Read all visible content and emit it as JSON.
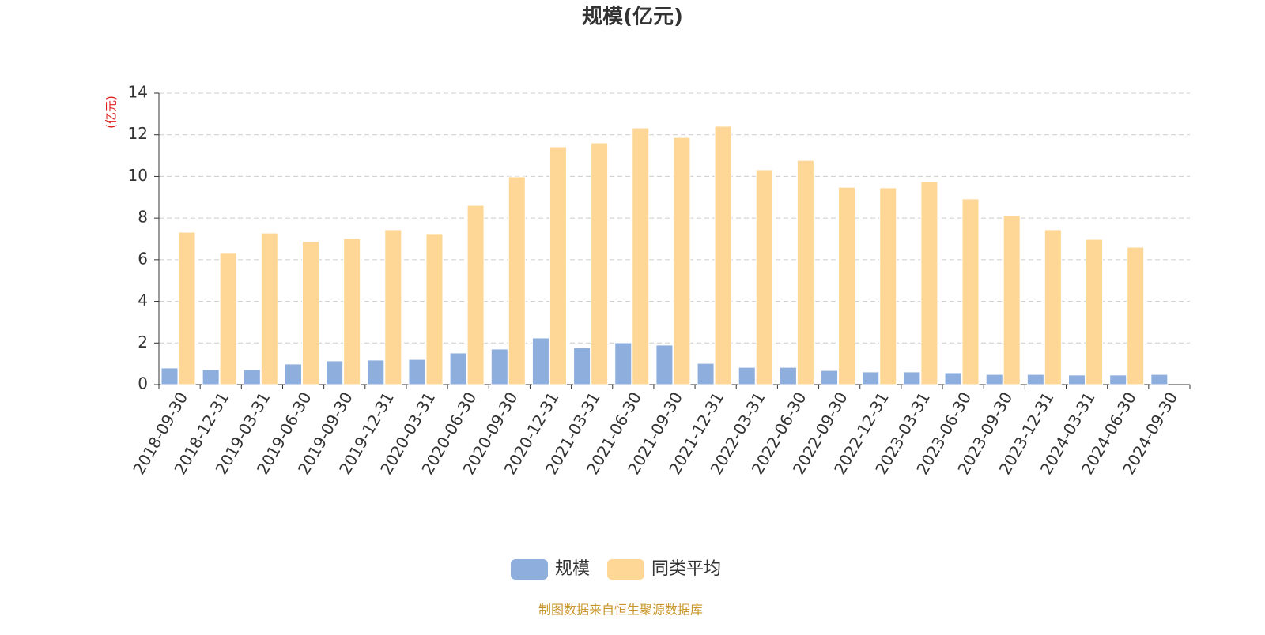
{
  "chart_data": {
    "type": "bar",
    "title": "规模(亿元)",
    "y_axis_label": "(亿元)",
    "categories": [
      "2018-09-30",
      "2018-12-31",
      "2019-03-31",
      "2019-06-30",
      "2019-09-30",
      "2019-12-31",
      "2020-03-31",
      "2020-06-30",
      "2020-09-30",
      "2020-12-31",
      "2021-03-31",
      "2021-06-30",
      "2021-09-30",
      "2021-12-31",
      "2022-03-31",
      "2022-06-30",
      "2022-09-30",
      "2022-12-31",
      "2023-03-31",
      "2023-06-30",
      "2023-09-30",
      "2023-12-31",
      "2024-03-31",
      "2024-06-30",
      "2024-09-30"
    ],
    "series": [
      {
        "name": "规模",
        "color": "#8eaedd",
        "values": [
          0.8,
          0.72,
          0.72,
          0.99,
          1.14,
          1.18,
          1.21,
          1.52,
          1.71,
          2.24,
          1.78,
          2.01,
          1.9,
          1.02,
          0.83,
          0.83,
          0.68,
          0.61,
          0.61,
          0.57,
          0.49,
          0.49,
          0.46,
          0.46,
          0.49
        ]
      },
      {
        "name": "同类平均",
        "color": "#fed796",
        "values": [
          7.32,
          6.34,
          7.28,
          6.87,
          7.02,
          7.44,
          7.25,
          8.61,
          9.98,
          11.42,
          11.61,
          12.33,
          11.87,
          12.41,
          10.32,
          10.77,
          9.48,
          9.45,
          9.75,
          8.92,
          8.12,
          7.44,
          6.98,
          6.6,
          null
        ]
      }
    ],
    "ylim": [
      0,
      14
    ],
    "yticks": [
      0,
      2,
      4,
      6,
      8,
      10,
      12,
      14
    ],
    "grid": true,
    "legend": "bottom",
    "source": "制图数据来自恒生聚源数据库"
  }
}
